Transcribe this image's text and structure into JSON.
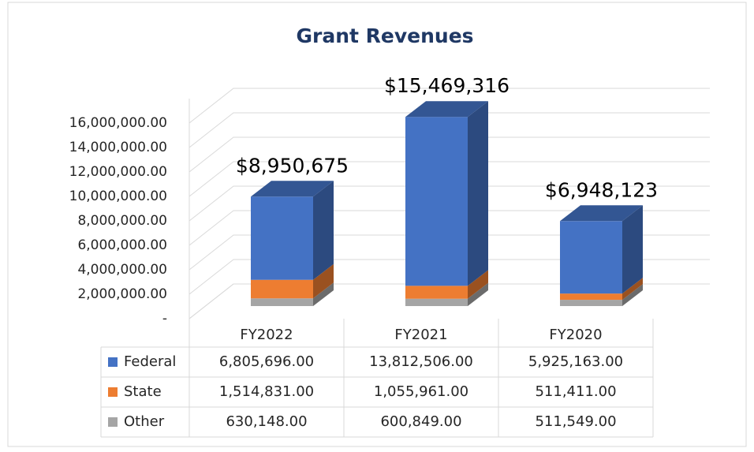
{
  "chart_data": {
    "type": "bar3d_stacked",
    "title": "Grant Revenues",
    "categories": [
      "FY2022",
      "FY2021",
      "FY2020"
    ],
    "series": [
      {
        "name": "Federal",
        "color": "#4472c4",
        "values": [
          6805696,
          13812506,
          5925163
        ],
        "value_labels": [
          "6,805,696.00",
          "13,812,506.00",
          "5,925,163.00"
        ]
      },
      {
        "name": "State",
        "color": "#ed7d31",
        "values": [
          1514831,
          1055961,
          511411
        ],
        "value_labels": [
          "1,514,831.00",
          "1,055,961.00",
          "511,411.00"
        ]
      },
      {
        "name": "Other",
        "color": "#a5a5a5",
        "values": [
          630148,
          600849,
          511549
        ],
        "value_labels": [
          "630,148.00",
          "600,849.00",
          "511,549.00"
        ]
      }
    ],
    "totals": {
      "values": [
        8950675,
        15469316,
        6948123
      ],
      "value_labels": [
        "$8,950,675",
        "$15,469,316",
        "$6,948,123"
      ]
    },
    "ylim": [
      0,
      18000000
    ],
    "yticks": [
      {
        "value": 0,
        "label": "-"
      },
      {
        "value": 2000000,
        "label": "2,000,000.00"
      },
      {
        "value": 4000000,
        "label": "4,000,000.00"
      },
      {
        "value": 6000000,
        "label": "6,000,000.00"
      },
      {
        "value": 8000000,
        "label": "8,000,000.00"
      },
      {
        "value": 10000000,
        "label": "10,000,000.00"
      },
      {
        "value": 12000000,
        "label": "12,000,000.00"
      },
      {
        "value": 14000000,
        "label": "14,000,000.00"
      },
      {
        "value": 16000000,
        "label": "16,000,000.00"
      }
    ],
    "grid": true,
    "legend": "table"
  }
}
